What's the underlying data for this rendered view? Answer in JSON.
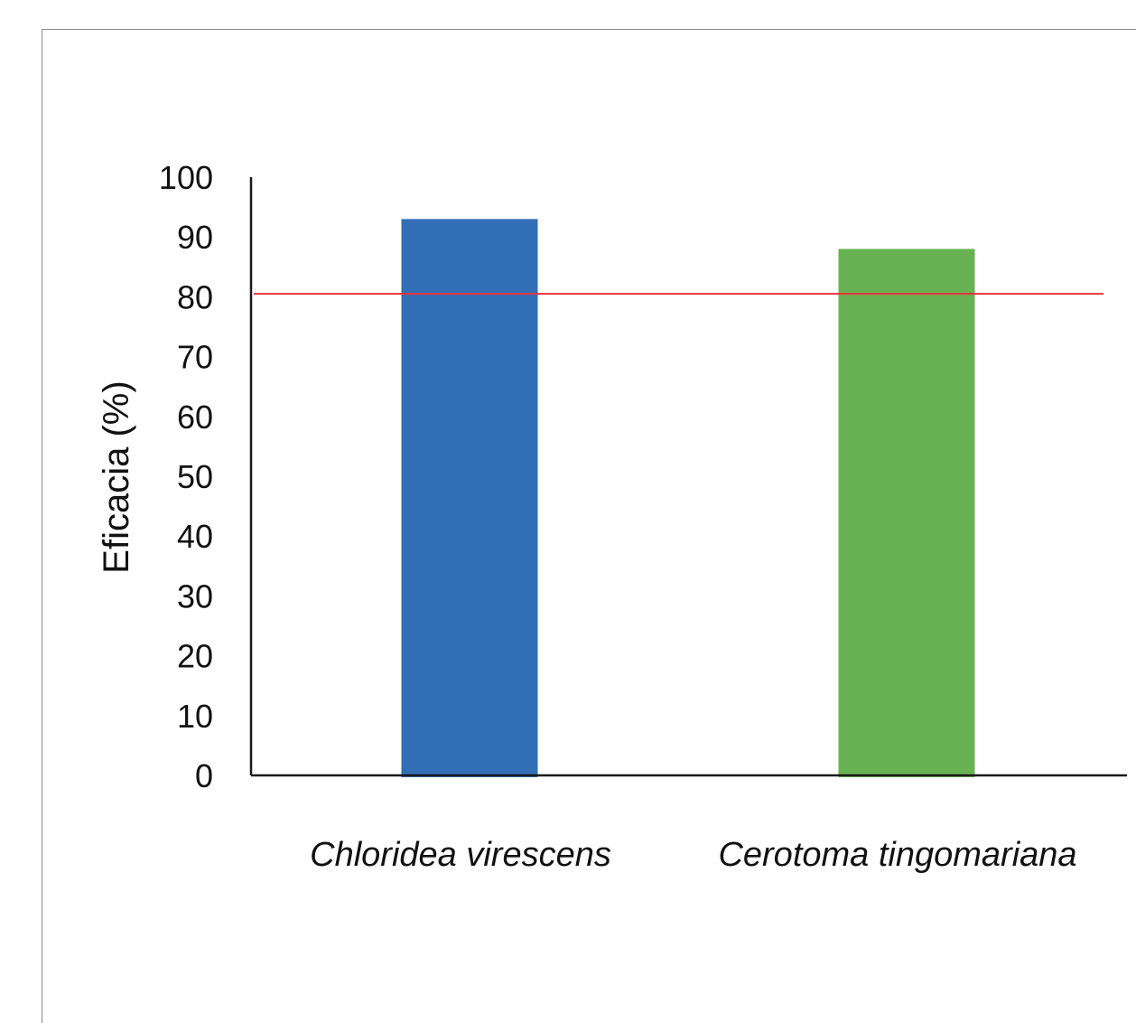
{
  "chart_data": {
    "type": "bar",
    "categories": [
      "Chloridea virescens",
      "Cerotoma tingomariana"
    ],
    "values": [
      93,
      88
    ],
    "colors": [
      "#336fb6",
      "#69b253"
    ],
    "ylabel": "Eficacia (%)",
    "xlabel": "",
    "ylim": [
      0,
      100
    ],
    "yticks": [
      0,
      10,
      20,
      30,
      40,
      50,
      60,
      70,
      80,
      90,
      100
    ],
    "reference_line": {
      "value": 80.5,
      "color": "#e8303a"
    },
    "grid": false,
    "legend": "none"
  }
}
